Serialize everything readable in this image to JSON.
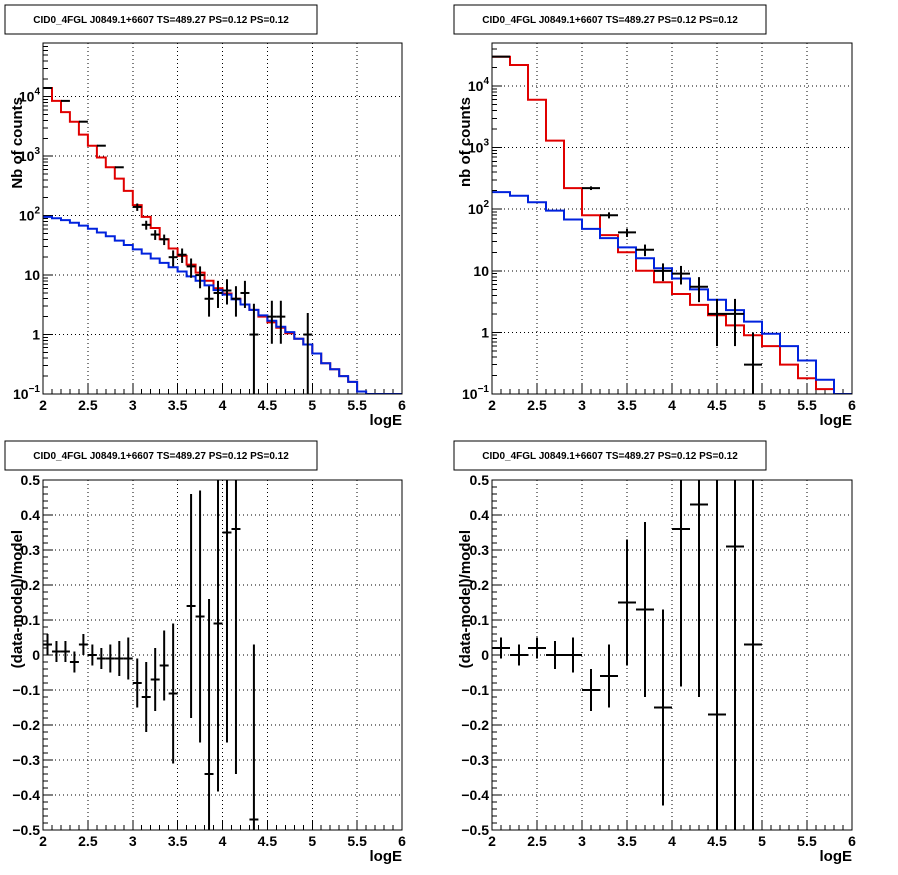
{
  "colors": {
    "data": "#000000",
    "total_model": "#e00000",
    "source_model": "#0022dd"
  },
  "chart_data": [
    {
      "type": "line",
      "title": "CID0_4FGL J0849.1+6607 TS=489.27 PS=0.12 PS=0.12",
      "xlabel": "logE",
      "ylabel": "Nb of counts",
      "log_y": true,
      "xlim": [
        2,
        6
      ],
      "ylim": [
        0.1,
        80000
      ],
      "x_ticks": [
        "2",
        "2.5",
        "3",
        "3.5",
        "4",
        "4.5",
        "5",
        "5.5",
        "6"
      ],
      "y_ticks": [
        {
          "v": 0.1,
          "base": "10",
          "exp": "−1"
        },
        {
          "v": 1,
          "label": "1"
        },
        {
          "v": 10,
          "label": "10"
        },
        {
          "v": 100,
          "base": "10",
          "exp": "2"
        },
        {
          "v": 1000,
          "base": "10",
          "exp": "3"
        },
        {
          "v": 10000,
          "base": "10",
          "exp": "4"
        }
      ],
      "grid": true,
      "bin_width": 0.1,
      "series": [
        {
          "key": "total_model",
          "style": "step",
          "x": [
            2.0,
            2.1,
            2.2,
            2.3,
            2.4,
            2.5,
            2.6,
            2.7,
            2.8,
            2.9,
            3.0,
            3.1,
            3.2,
            3.3,
            3.4,
            3.5,
            3.6,
            3.7,
            3.8,
            3.9,
            4.0,
            4.1,
            4.2,
            4.3,
            4.4,
            4.5,
            4.6,
            4.7,
            4.8,
            4.9,
            5.0,
            5.1,
            5.2,
            5.3,
            5.4,
            5.5,
            5.6,
            5.7,
            5.8,
            5.9
          ],
          "values": [
            14000,
            8500,
            5500,
            3800,
            2300,
            1500,
            950,
            650,
            420,
            260,
            150,
            95,
            62,
            40,
            28,
            21,
            15,
            11,
            8,
            6,
            4.9,
            4,
            3.2,
            2.6,
            2,
            1.6,
            1.3,
            1.05,
            0.85,
            0.68,
            0.48,
            0.33,
            0.26,
            0.2,
            0.16,
            0.11,
            0.1,
            0.1,
            0.1,
            0.1
          ]
        },
        {
          "key": "source_model",
          "style": "step",
          "x": [
            2.0,
            2.1,
            2.2,
            2.3,
            2.4,
            2.5,
            2.6,
            2.7,
            2.8,
            2.9,
            3.0,
            3.1,
            3.2,
            3.3,
            3.4,
            3.5,
            3.6,
            3.7,
            3.8,
            3.9,
            4.0,
            4.1,
            4.2,
            4.3,
            4.4,
            4.5,
            4.6,
            4.7,
            4.8,
            4.9,
            5.0,
            5.1,
            5.2,
            5.3,
            5.4,
            5.5,
            5.6,
            5.7,
            5.8,
            5.9
          ],
          "values": [
            95,
            90,
            84,
            76,
            68,
            60,
            52,
            45,
            38,
            32,
            27,
            23,
            19,
            16,
            13.5,
            11.5,
            9.5,
            8,
            6.7,
            5.6,
            4.7,
            3.9,
            3.2,
            2.6,
            2.1,
            1.7,
            1.35,
            1.1,
            0.85,
            0.68,
            0.48,
            0.33,
            0.26,
            0.2,
            0.16,
            0.11,
            0.1,
            0.1,
            0.1,
            0.1
          ]
        },
        {
          "key": "data",
          "style": "errorbar",
          "points": [
            [
              2.05,
              14000,
              0.05,
              0.05
            ],
            [
              2.25,
              8500,
              0.05,
              0.05
            ],
            [
              2.45,
              3800,
              0.05,
              0.05
            ],
            [
              2.65,
              1500,
              0.05,
              0.05
            ],
            [
              2.85,
              650,
              0.05,
              0.05
            ],
            [
              3.05,
              140,
              20,
              20
            ],
            [
              3.15,
              70,
              12,
              12
            ],
            [
              3.25,
              48,
              9,
              9
            ],
            [
              3.35,
              40,
              8,
              8
            ],
            [
              3.45,
              20,
              6,
              6
            ],
            [
              3.55,
              22,
              6,
              6
            ],
            [
              3.65,
              14,
              5,
              5
            ],
            [
              3.75,
              10,
              4,
              4
            ],
            [
              3.85,
              4,
              2.5,
              2
            ],
            [
              3.95,
              5,
              3,
              2.2
            ],
            [
              4.05,
              5.5,
              3,
              2.3
            ],
            [
              4.15,
              4,
              2.5,
              2
            ],
            [
              4.25,
              5,
              3,
              2.2
            ],
            [
              4.35,
              1,
              2.3,
              0.95
            ],
            [
              4.55,
              2,
              1.7,
              1.3
            ],
            [
              4.65,
              2,
              1.7,
              1.3
            ],
            [
              4.95,
              1,
              1.3,
              0.9
            ]
          ]
        }
      ]
    },
    {
      "type": "line",
      "title": "CID0_4FGL J0849.1+6607 TS=489.27 PS=0.12 PS=0.12",
      "xlabel": "logE",
      "ylabel": "nb of counts",
      "log_y": true,
      "xlim": [
        2,
        6
      ],
      "ylim": [
        0.1,
        50000
      ],
      "x_ticks": [
        "2",
        "2.5",
        "3",
        "3.5",
        "4",
        "4.5",
        "5",
        "5.5",
        "6"
      ],
      "y_ticks": [
        {
          "v": 0.1,
          "base": "10",
          "exp": "−1"
        },
        {
          "v": 1,
          "label": "1"
        },
        {
          "v": 10,
          "label": "10"
        },
        {
          "v": 100,
          "base": "10",
          "exp": "2"
        },
        {
          "v": 1000,
          "base": "10",
          "exp": "3"
        },
        {
          "v": 10000,
          "base": "10",
          "exp": "4"
        }
      ],
      "grid": true,
      "bin_width": 0.2,
      "series": [
        {
          "key": "total_model",
          "style": "step",
          "x": [
            2.0,
            2.2,
            2.4,
            2.6,
            2.8,
            3.0,
            3.2,
            3.4,
            3.6,
            3.8,
            4.0,
            4.2,
            4.4,
            4.6,
            4.8,
            5.0,
            5.2,
            5.4,
            5.6,
            5.8
          ],
          "values": [
            30000,
            22000,
            6000,
            1300,
            220,
            80,
            38,
            20,
            10,
            6.5,
            4.2,
            2.8,
            1.9,
            1.3,
            0.9,
            0.6,
            0.3,
            0.18,
            0.12,
            0.1
          ]
        },
        {
          "key": "source_model",
          "style": "step",
          "x": [
            2.0,
            2.2,
            2.4,
            2.6,
            2.8,
            3.0,
            3.2,
            3.4,
            3.6,
            3.8,
            4.0,
            4.2,
            4.4,
            4.6,
            4.8,
            5.0,
            5.2,
            5.4,
            5.6,
            5.8
          ],
          "values": [
            190,
            165,
            130,
            95,
            68,
            48,
            34,
            24,
            16,
            11,
            7.5,
            5,
            3.4,
            2.3,
            1.5,
            0.95,
            0.6,
            0.35,
            0.17,
            0.1
          ]
        },
        {
          "key": "data",
          "style": "errorbar",
          "points": [
            [
              2.1,
              30000,
              0.1,
              0.1
            ],
            [
              3.1,
              220,
              15,
              15
            ],
            [
              3.3,
              80,
              9,
              9
            ],
            [
              3.5,
              42,
              6.5,
              6.5
            ],
            [
              3.7,
              22,
              4.7,
              4.7
            ],
            [
              3.9,
              10,
              3.2,
              3.2
            ],
            [
              4.1,
              9,
              3,
              3
            ],
            [
              4.3,
              5.5,
              2.4,
              2.4
            ],
            [
              4.5,
              2,
              1.5,
              1.4
            ],
            [
              4.7,
              2,
              1.5,
              1.4
            ],
            [
              4.9,
              0.3,
              0.7,
              0.25
            ]
          ]
        }
      ]
    },
    {
      "type": "scatter",
      "title": "CID0_4FGL J0849.1+6607 TS=489.27 PS=0.12 PS=0.12",
      "xlabel": "logE",
      "ylabel": "(data-model)/model",
      "log_y": false,
      "xlim": [
        2,
        6
      ],
      "ylim": [
        -0.5,
        0.5
      ],
      "x_ticks": [
        "2",
        "2.5",
        "3",
        "3.5",
        "4",
        "4.5",
        "5",
        "5.5",
        "6"
      ],
      "y_ticks": [
        {
          "v": -0.5,
          "label": "−0.5"
        },
        {
          "v": -0.4,
          "label": "−0.4"
        },
        {
          "v": -0.3,
          "label": "−0.3"
        },
        {
          "v": -0.2,
          "label": "−0.2"
        },
        {
          "v": -0.1,
          "label": "−0.1"
        },
        {
          "v": 0,
          "label": "0"
        },
        {
          "v": 0.1,
          "label": "0.1"
        },
        {
          "v": 0.2,
          "label": "0.2"
        },
        {
          "v": 0.3,
          "label": "0.3"
        },
        {
          "v": 0.4,
          "label": "0.4"
        },
        {
          "v": 0.5,
          "label": "0.5"
        }
      ],
      "grid": true,
      "bin_width": 0.1,
      "series": [
        {
          "key": "data",
          "style": "errorbar",
          "points": [
            [
              2.05,
              0.03,
              0.03,
              0.03
            ],
            [
              2.15,
              0.01,
              0.03,
              0.03
            ],
            [
              2.25,
              0.01,
              0.03,
              0.03
            ],
            [
              2.35,
              -0.02,
              0.03,
              0.03
            ],
            [
              2.45,
              0.03,
              0.03,
              0.03
            ],
            [
              2.55,
              0.0,
              0.03,
              0.03
            ],
            [
              2.65,
              -0.01,
              0.03,
              0.03
            ],
            [
              2.75,
              -0.01,
              0.04,
              0.04
            ],
            [
              2.85,
              -0.01,
              0.05,
              0.05
            ],
            [
              2.95,
              -0.01,
              0.06,
              0.06
            ],
            [
              3.05,
              -0.08,
              0.07,
              0.07
            ],
            [
              3.15,
              -0.12,
              0.1,
              0.1
            ],
            [
              3.25,
              -0.07,
              0.09,
              0.09
            ],
            [
              3.35,
              -0.03,
              0.1,
              0.1
            ],
            [
              3.45,
              -0.11,
              0.2,
              0.2
            ],
            [
              3.65,
              0.14,
              0.32,
              0.32
            ],
            [
              3.75,
              0.11,
              0.36,
              0.36
            ],
            [
              3.85,
              -0.34,
              0.5,
              0.5
            ],
            [
              3.95,
              0.09,
              0.48,
              0.48
            ],
            [
              4.05,
              0.35,
              0.6,
              0.6
            ],
            [
              4.15,
              0.36,
              0.7,
              0.7
            ],
            [
              4.35,
              -0.47,
              0.5,
              0.5
            ]
          ]
        }
      ]
    },
    {
      "type": "scatter",
      "title": "CID0_4FGL J0849.1+6607 TS=489.27 PS=0.12 PS=0.12",
      "xlabel": "logE",
      "ylabel": "(data-model)/model",
      "log_y": false,
      "xlim": [
        2,
        6
      ],
      "ylim": [
        -0.5,
        0.5
      ],
      "x_ticks": [
        "2",
        "2.5",
        "3",
        "3.5",
        "4",
        "4.5",
        "5",
        "5.5",
        "6"
      ],
      "y_ticks": [
        {
          "v": -0.5,
          "label": "−0.5"
        },
        {
          "v": -0.4,
          "label": "−0.4"
        },
        {
          "v": -0.3,
          "label": "−0.3"
        },
        {
          "v": -0.2,
          "label": "−0.2"
        },
        {
          "v": -0.1,
          "label": "−0.1"
        },
        {
          "v": 0,
          "label": "0"
        },
        {
          "v": 0.1,
          "label": "0.1"
        },
        {
          "v": 0.2,
          "label": "0.2"
        },
        {
          "v": 0.3,
          "label": "0.3"
        },
        {
          "v": 0.4,
          "label": "0.4"
        },
        {
          "v": 0.5,
          "label": "0.5"
        }
      ],
      "grid": true,
      "bin_width": 0.2,
      "series": [
        {
          "key": "data",
          "style": "errorbar",
          "points": [
            [
              2.1,
              0.02,
              0.03,
              0.03
            ],
            [
              2.3,
              0.0,
              0.03,
              0.03
            ],
            [
              2.5,
              0.02,
              0.03,
              0.03
            ],
            [
              2.7,
              0.0,
              0.04,
              0.04
            ],
            [
              2.9,
              0.0,
              0.05,
              0.05
            ],
            [
              3.1,
              -0.1,
              0.06,
              0.06
            ],
            [
              3.3,
              -0.06,
              0.09,
              0.09
            ],
            [
              3.5,
              0.15,
              0.18,
              0.18
            ],
            [
              3.7,
              0.13,
              0.25,
              0.25
            ],
            [
              3.9,
              -0.15,
              0.28,
              0.28
            ],
            [
              4.1,
              0.36,
              0.45,
              0.45
            ],
            [
              4.3,
              0.43,
              0.55,
              0.55
            ],
            [
              4.5,
              -0.17,
              0.75,
              0.75
            ],
            [
              4.7,
              0.31,
              0.9,
              0.9
            ],
            [
              4.9,
              0.03,
              1.2,
              1.2
            ]
          ]
        }
      ]
    }
  ]
}
